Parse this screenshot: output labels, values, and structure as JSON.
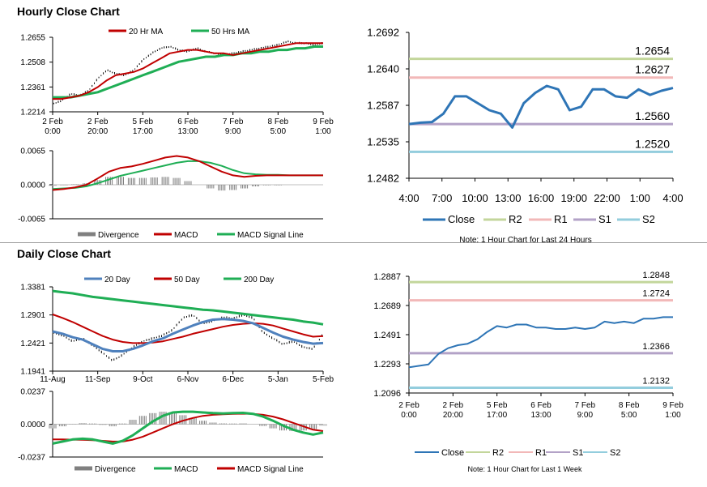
{
  "titles": {
    "hourly": "Hourly Close Chart",
    "daily": "Daily Close Chart"
  },
  "colors": {
    "red": "#c00000",
    "green": "#1fae55",
    "blue": "#2e75b6",
    "steelblue": "#4f81bd",
    "r2": "#c3d69b",
    "r1": "#f2b8b8",
    "s1": "#b3a2c7",
    "s2": "#93cddd",
    "divergence": "#808080",
    "price": "#000000"
  },
  "chart_data": [
    {
      "id": "hourly_price",
      "type": "line",
      "title": "",
      "yticks": [
        "1.2655",
        "1.2508",
        "1.2361",
        "1.2214"
      ],
      "ylim": [
        1.2214,
        1.2655
      ],
      "xticks": [
        "2 Feb 0:00",
        "2 Feb 20:00",
        "5 Feb 17:00",
        "6 Feb 13:00",
        "7 Feb 9:00",
        "8 Feb 5:00",
        "9 Feb 1:00"
      ],
      "legend": [
        "20 Hr MA",
        "50 Hrs MA"
      ],
      "series": [
        {
          "name": "Close",
          "values": [
            1.226,
            1.228,
            1.232,
            1.231,
            1.234,
            1.241,
            1.246,
            1.244,
            1.243,
            1.246,
            1.252,
            1.256,
            1.259,
            1.26,
            1.258,
            1.257,
            1.259,
            1.257,
            1.256,
            1.255,
            1.256,
            1.257,
            1.258,
            1.259,
            1.26,
            1.261,
            1.263,
            1.262,
            1.262,
            1.261,
            1.262
          ]
        },
        {
          "name": "20 Hr MA",
          "values": [
            1.229,
            1.229,
            1.23,
            1.231,
            1.233,
            1.236,
            1.24,
            1.243,
            1.244,
            1.245,
            1.247,
            1.25,
            1.253,
            1.256,
            1.257,
            1.258,
            1.258,
            1.257,
            1.256,
            1.256,
            1.255,
            1.256,
            1.257,
            1.258,
            1.259,
            1.26,
            1.261,
            1.262,
            1.262,
            1.262,
            1.262
          ]
        },
        {
          "name": "50 Hrs MA",
          "values": [
            1.23,
            1.23,
            1.23,
            1.231,
            1.232,
            1.233,
            1.235,
            1.237,
            1.239,
            1.241,
            1.243,
            1.245,
            1.247,
            1.249,
            1.251,
            1.252,
            1.253,
            1.254,
            1.254,
            1.255,
            1.255,
            1.256,
            1.256,
            1.257,
            1.257,
            1.258,
            1.258,
            1.259,
            1.259,
            1.26,
            1.26
          ]
        }
      ]
    },
    {
      "id": "hourly_macd",
      "type": "line",
      "yticks": [
        "0.0065",
        "0.0000",
        "-0.0065"
      ],
      "ylim": [
        -0.0065,
        0.0065
      ],
      "legend": [
        "Divergence",
        "MACD",
        "MACD Signal Line"
      ],
      "series": [
        {
          "name": "MACD",
          "values": [
            -0.001,
            -0.0008,
            -0.0005,
            0.0,
            0.0012,
            0.0025,
            0.0032,
            0.0035,
            0.004,
            0.0046,
            0.0052,
            0.0055,
            0.0052,
            0.0045,
            0.0035,
            0.0025,
            0.0018,
            0.0015,
            0.0017,
            0.0018,
            0.0018,
            0.0018,
            0.0018,
            0.0018,
            0.0018
          ]
        },
        {
          "name": "MACD Signal Line",
          "values": [
            -0.0008,
            -0.0007,
            -0.0006,
            -0.0003,
            0.0003,
            0.001,
            0.0017,
            0.0022,
            0.0027,
            0.0032,
            0.0037,
            0.0042,
            0.0045,
            0.0045,
            0.0042,
            0.0036,
            0.0028,
            0.0022,
            0.002,
            0.0019,
            0.0019,
            0.0018,
            0.0018,
            0.0018,
            0.0018
          ]
        },
        {
          "name": "Divergence",
          "values": [
            -0.0002,
            -0.0001,
            0.0001,
            0.0003,
            0.0009,
            0.0015,
            0.0015,
            0.0013,
            0.0013,
            0.0014,
            0.0015,
            0.0013,
            0.0007,
            0.0,
            -0.0007,
            -0.0011,
            -0.001,
            -0.0007,
            -0.0003,
            -0.0001,
            -0.0001,
            0.0,
            0.0,
            0.0,
            0.0
          ]
        }
      ]
    },
    {
      "id": "hourly_levels",
      "type": "line",
      "yticks": [
        "1.2692",
        "1.2640",
        "1.2587",
        "1.2535",
        "1.2482"
      ],
      "ylim": [
        1.2482,
        1.2692
      ],
      "xticks": [
        "4:00",
        "7:00",
        "10:00",
        "13:00",
        "16:00",
        "19:00",
        "22:00",
        "1:00",
        "4:00"
      ],
      "legend": [
        "Close",
        "R2",
        "R1",
        "S1",
        "S2"
      ],
      "note": "Note: 1 Hour Chart for Last 24 Hours",
      "levels": [
        {
          "name": "R2",
          "value": 1.2654,
          "label": "1.2654"
        },
        {
          "name": "R1",
          "value": 1.2627,
          "label": "1.2627"
        },
        {
          "name": "S1",
          "value": 1.256,
          "label": "1.2560"
        },
        {
          "name": "S2",
          "value": 1.252,
          "label": "1.2520"
        }
      ],
      "series": [
        {
          "name": "Close",
          "values": [
            1.256,
            1.2562,
            1.2563,
            1.2575,
            1.26,
            1.26,
            1.259,
            1.258,
            1.2575,
            1.2555,
            1.259,
            1.2605,
            1.2615,
            1.261,
            1.258,
            1.2585,
            1.261,
            1.261,
            1.26,
            1.2598,
            1.261,
            1.2602,
            1.2608,
            1.2612
          ]
        }
      ]
    },
    {
      "id": "daily_price",
      "type": "line",
      "yticks": [
        "1.3381",
        "1.2901",
        "1.2421",
        "1.1941"
      ],
      "ylim": [
        1.1941,
        1.3381
      ],
      "xticks": [
        "11-Aug",
        "11-Sep",
        "9-Oct",
        "6-Nov",
        "6-Dec",
        "5-Jan",
        "5-Feb"
      ],
      "legend": [
        "20 Day",
        "50 Day",
        "200 Day"
      ],
      "series": [
        {
          "name": "Close",
          "values": [
            1.26,
            1.255,
            1.245,
            1.25,
            1.238,
            1.225,
            1.212,
            1.222,
            1.235,
            1.245,
            1.25,
            1.255,
            1.265,
            1.285,
            1.29,
            1.275,
            1.28,
            1.286,
            1.284,
            1.29,
            1.285,
            1.26,
            1.25,
            1.24,
            1.245,
            1.235,
            1.232,
            1.258
          ]
        },
        {
          "name": "20 Day",
          "values": [
            1.262,
            1.258,
            1.252,
            1.248,
            1.24,
            1.232,
            1.228,
            1.228,
            1.232,
            1.238,
            1.245,
            1.25,
            1.258,
            1.265,
            1.272,
            1.278,
            1.282,
            1.283,
            1.282,
            1.28,
            1.276,
            1.268,
            1.26,
            1.253,
            1.248,
            1.244,
            1.241,
            1.242
          ]
        },
        {
          "name": "50 Day",
          "values": [
            1.291,
            1.285,
            1.278,
            1.27,
            1.262,
            1.254,
            1.248,
            1.244,
            1.242,
            1.242,
            1.243,
            1.245,
            1.249,
            1.253,
            1.258,
            1.262,
            1.266,
            1.27,
            1.273,
            1.275,
            1.276,
            1.275,
            1.272,
            1.267,
            1.262,
            1.257,
            1.253,
            1.254
          ]
        },
        {
          "name": "200 Day",
          "values": [
            1.331,
            1.329,
            1.327,
            1.324,
            1.321,
            1.319,
            1.317,
            1.315,
            1.313,
            1.311,
            1.309,
            1.307,
            1.305,
            1.303,
            1.301,
            1.299,
            1.298,
            1.296,
            1.294,
            1.292,
            1.29,
            1.288,
            1.286,
            1.284,
            1.282,
            1.279,
            1.277,
            1.274
          ]
        }
      ]
    },
    {
      "id": "daily_macd",
      "type": "line",
      "yticks": [
        "0.0237",
        "0.0000",
        "-0.0237"
      ],
      "ylim": [
        -0.0237,
        0.0237
      ],
      "legend": [
        "Divergence",
        "MACD",
        "MACD Signal Line"
      ],
      "series": [
        {
          "name": "MACD",
          "values": [
            -0.014,
            -0.0125,
            -0.011,
            -0.0105,
            -0.011,
            -0.0125,
            -0.014,
            -0.012,
            -0.008,
            -0.003,
            0.002,
            0.006,
            0.0085,
            0.009,
            0.009,
            0.0085,
            0.008,
            0.0078,
            0.008,
            0.0082,
            0.0075,
            0.0055,
            0.0025,
            -0.001,
            -0.004,
            -0.006,
            -0.0075,
            -0.006
          ]
        },
        {
          "name": "MACD Signal Line",
          "values": [
            -0.011,
            -0.011,
            -0.0112,
            -0.0113,
            -0.0115,
            -0.012,
            -0.0125,
            -0.0125,
            -0.0112,
            -0.009,
            -0.006,
            -0.003,
            0.0,
            0.0025,
            0.0045,
            0.006,
            0.0068,
            0.0072,
            0.0075,
            0.0076,
            0.0075,
            0.0068,
            0.0055,
            0.0035,
            0.001,
            -0.0015,
            -0.004,
            -0.005
          ]
        },
        {
          "name": "Divergence",
          "values": [
            -0.003,
            -0.0015,
            0.0002,
            0.0008,
            0.0005,
            -0.0005,
            -0.0015,
            0.0005,
            0.0032,
            0.006,
            0.008,
            0.009,
            0.0085,
            0.0065,
            0.0045,
            0.0025,
            0.0012,
            0.0006,
            0.0005,
            0.0006,
            0.0,
            -0.0013,
            -0.003,
            -0.0045,
            -0.005,
            -0.0045,
            -0.0035,
            -0.001
          ]
        }
      ]
    },
    {
      "id": "daily_levels",
      "type": "line",
      "yticks": [
        "1.2887",
        "1.2689",
        "1.2491",
        "1.2293",
        "1.2096"
      ],
      "ylim": [
        1.2096,
        1.2887
      ],
      "xticks": [
        "2 Feb 0:00",
        "2 Feb 20:00",
        "5 Feb 17:00",
        "6 Feb 13:00",
        "7 Feb 9:00",
        "8 Feb 5:00",
        "9 Feb 1:00"
      ],
      "legend": [
        "Close",
        "R2",
        "R1",
        "S1",
        "S2"
      ],
      "note": "Note: 1 Hour Chart for Last 1 Week",
      "levels": [
        {
          "name": "R2",
          "value": 1.2848,
          "label": "1.2848"
        },
        {
          "name": "R1",
          "value": 1.2724,
          "label": "1.2724"
        },
        {
          "name": "S1",
          "value": 1.2366,
          "label": "1.2366"
        },
        {
          "name": "S2",
          "value": 1.2132,
          "label": "1.2132"
        }
      ],
      "series": [
        {
          "name": "Close",
          "values": [
            1.227,
            1.228,
            1.229,
            1.236,
            1.24,
            1.242,
            1.243,
            1.246,
            1.251,
            1.255,
            1.254,
            1.256,
            1.256,
            1.254,
            1.254,
            1.253,
            1.253,
            1.254,
            1.253,
            1.254,
            1.258,
            1.257,
            1.258,
            1.257,
            1.26,
            1.26,
            1.261,
            1.261
          ]
        }
      ]
    }
  ]
}
